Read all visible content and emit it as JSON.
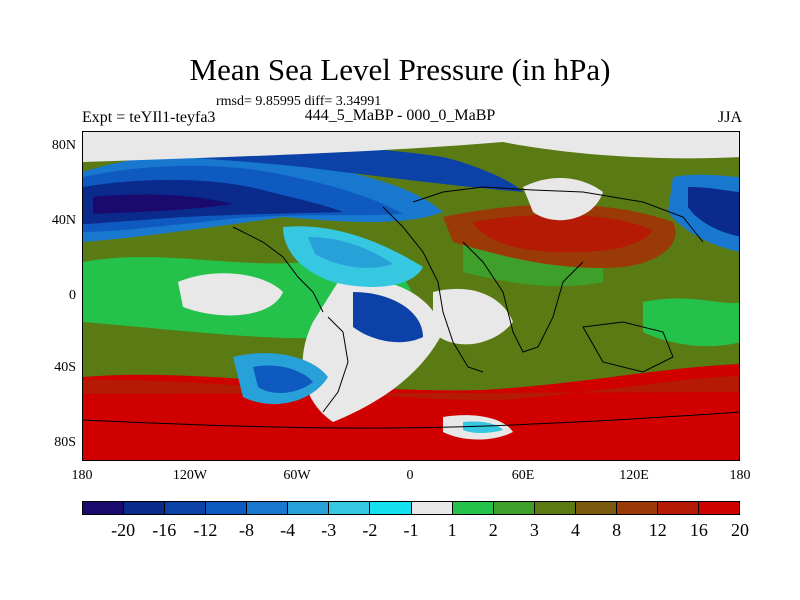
{
  "title": "Mean Sea Level Pressure (in hPa)",
  "stats": "rmsd= 9.85995 diff= 3.34991",
  "experiment": "Expt = teYIl1-teyfa3",
  "period": "444_5_MaBP - 000_0_MaBP",
  "season": "JJA",
  "lat_labels": [
    "80N",
    "40N",
    "0",
    "40S",
    "80S"
  ],
  "lon_labels": [
    "180",
    "120W",
    "60W",
    "0",
    "60E",
    "120E",
    "180"
  ],
  "colorbar": {
    "colors": [
      "#1a0a6e",
      "#0a2a8c",
      "#0c42a8",
      "#0f5ac0",
      "#1878d0",
      "#28a0d8",
      "#35c8e0",
      "#14e0f0",
      "#e8e8e8",
      "#24c24a",
      "#3ea02a",
      "#5a7a14",
      "#7a5a0c",
      "#9a3a06",
      "#b41a04",
      "#d00000"
    ],
    "levels": [
      "-20",
      "-16",
      "-12",
      "-8",
      "-4",
      "-3",
      "-2",
      "-1",
      "1",
      "2",
      "3",
      "4",
      "8",
      "12",
      "16",
      "20"
    ]
  }
}
